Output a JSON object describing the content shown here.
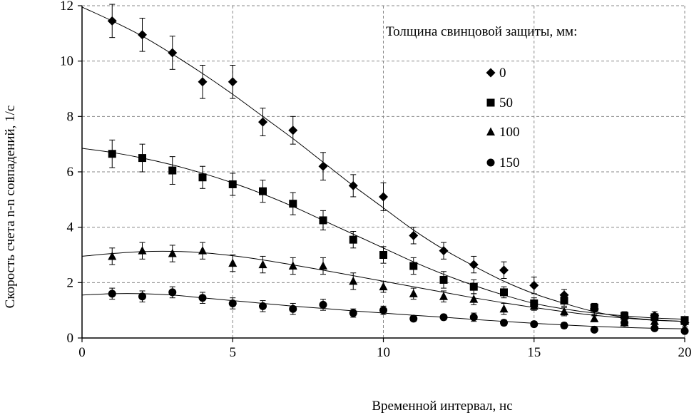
{
  "chart_data": {
    "type": "scatter",
    "xlabel": "Временной интервал, нс",
    "ylabel": "Скорость счета n-n совпадений, 1/с",
    "xlim": [
      0,
      20
    ],
    "ylim": [
      0,
      12
    ],
    "x_ticks": [
      "0",
      "5",
      "10",
      "15",
      "20"
    ],
    "y_ticks": [
      "0",
      "2",
      "4",
      "6",
      "8",
      "10",
      "12"
    ],
    "grid": "dashed",
    "legend_title": "Толщина свинцовой защиты, мм:",
    "legend_position": "top-right",
    "x": [
      1,
      2,
      3,
      4,
      5,
      6,
      7,
      8,
      9,
      10,
      11,
      12,
      13,
      14,
      15,
      16,
      17,
      18,
      19,
      20
    ],
    "series": [
      {
        "name": "0",
        "marker": "diamond",
        "values": [
          11.45,
          10.95,
          10.3,
          9.25,
          9.25,
          7.8,
          7.5,
          6.2,
          5.5,
          5.1,
          3.7,
          3.15,
          2.65,
          2.45,
          1.9,
          1.55,
          1.05,
          0.75,
          0.8,
          0.55
        ],
        "errors": [
          0.6,
          0.6,
          0.6,
          0.6,
          0.6,
          0.5,
          0.5,
          0.5,
          0.4,
          0.5,
          0.3,
          0.3,
          0.3,
          0.3,
          0.3,
          0.2,
          0.2,
          0.15,
          0.15,
          0.15
        ],
        "fit": [
          [
            0,
            11.95
          ],
          [
            1,
            11.45
          ],
          [
            2,
            10.9
          ],
          [
            3,
            10.25
          ],
          [
            4,
            9.55
          ],
          [
            5,
            8.8
          ],
          [
            6,
            8.0
          ],
          [
            7,
            7.2
          ],
          [
            8,
            6.35
          ],
          [
            9,
            5.5
          ],
          [
            10,
            4.7
          ],
          [
            11,
            3.9
          ],
          [
            12,
            3.2
          ],
          [
            13,
            2.6
          ],
          [
            14,
            2.05
          ],
          [
            15,
            1.6
          ],
          [
            16,
            1.25
          ],
          [
            17,
            0.95
          ],
          [
            18,
            0.75
          ],
          [
            19,
            0.65
          ],
          [
            20,
            0.6
          ]
        ]
      },
      {
        "name": "50",
        "marker": "square",
        "values": [
          6.65,
          6.5,
          6.05,
          5.8,
          5.55,
          5.3,
          4.85,
          4.25,
          3.55,
          3.0,
          2.6,
          2.1,
          1.85,
          1.65,
          1.25,
          1.35,
          1.1,
          0.8,
          0.75,
          0.65
        ],
        "errors": [
          0.5,
          0.5,
          0.5,
          0.4,
          0.4,
          0.4,
          0.4,
          0.35,
          0.3,
          0.3,
          0.3,
          0.3,
          0.25,
          0.2,
          0.2,
          0.2,
          0.15,
          0.15,
          0.1,
          0.1
        ],
        "fit": [
          [
            0,
            6.85
          ],
          [
            1,
            6.7
          ],
          [
            2,
            6.5
          ],
          [
            3,
            6.25
          ],
          [
            4,
            5.95
          ],
          [
            5,
            5.6
          ],
          [
            6,
            5.2
          ],
          [
            7,
            4.75
          ],
          [
            8,
            4.25
          ],
          [
            9,
            3.75
          ],
          [
            10,
            3.25
          ],
          [
            11,
            2.75
          ],
          [
            12,
            2.3
          ],
          [
            13,
            1.9
          ],
          [
            14,
            1.55
          ],
          [
            15,
            1.25
          ],
          [
            16,
            1.05
          ],
          [
            17,
            0.9
          ],
          [
            18,
            0.8
          ],
          [
            19,
            0.72
          ],
          [
            20,
            0.68
          ]
        ]
      },
      {
        "name": "100",
        "marker": "triangle",
        "values": [
          2.95,
          3.15,
          3.05,
          3.15,
          2.7,
          2.65,
          2.6,
          2.6,
          2.05,
          1.85,
          1.6,
          1.5,
          1.4,
          1.05,
          1.15,
          0.95,
          0.7,
          0.55,
          0.6,
          0.6
        ],
        "errors": [
          0.3,
          0.3,
          0.3,
          0.3,
          0.3,
          0.3,
          0.3,
          0.3,
          0.3,
          0.2,
          0.2,
          0.2,
          0.2,
          0.2,
          0.15,
          0.15,
          0.1,
          0.1,
          0.1,
          0.1
        ],
        "fit": [
          [
            0,
            2.95
          ],
          [
            1,
            3.05
          ],
          [
            2,
            3.12
          ],
          [
            3,
            3.13
          ],
          [
            4,
            3.08
          ],
          [
            5,
            2.97
          ],
          [
            6,
            2.82
          ],
          [
            7,
            2.64
          ],
          [
            8,
            2.45
          ],
          [
            9,
            2.25
          ],
          [
            10,
            2.05
          ],
          [
            11,
            1.85
          ],
          [
            12,
            1.65
          ],
          [
            13,
            1.45
          ],
          [
            14,
            1.27
          ],
          [
            15,
            1.1
          ],
          [
            16,
            0.95
          ],
          [
            17,
            0.82
          ],
          [
            18,
            0.72
          ],
          [
            19,
            0.64
          ],
          [
            20,
            0.6
          ]
        ]
      },
      {
        "name": "150",
        "marker": "circle",
        "values": [
          1.6,
          1.5,
          1.65,
          1.45,
          1.25,
          1.15,
          1.05,
          1.2,
          0.9,
          1.0,
          0.7,
          0.75,
          0.75,
          0.55,
          0.5,
          0.45,
          0.3,
          0.55,
          0.35,
          0.25
        ],
        "errors": [
          0.2,
          0.2,
          0.2,
          0.2,
          0.2,
          0.2,
          0.2,
          0.2,
          0.15,
          0.15,
          0.1,
          0.1,
          0.15,
          0.1,
          0.1,
          0.1,
          0.05,
          0.05,
          0.05,
          0.05
        ],
        "fit": [
          [
            0,
            1.55
          ],
          [
            1,
            1.6
          ],
          [
            2,
            1.6
          ],
          [
            3,
            1.55
          ],
          [
            4,
            1.45
          ],
          [
            5,
            1.35
          ],
          [
            6,
            1.25
          ],
          [
            7,
            1.15
          ],
          [
            8,
            1.07
          ],
          [
            9,
            0.98
          ],
          [
            10,
            0.9
          ],
          [
            11,
            0.82
          ],
          [
            12,
            0.75
          ],
          [
            13,
            0.67
          ],
          [
            14,
            0.6
          ],
          [
            15,
            0.53
          ],
          [
            16,
            0.47
          ],
          [
            17,
            0.42
          ],
          [
            18,
            0.38
          ],
          [
            19,
            0.35
          ],
          [
            20,
            0.33
          ]
        ]
      }
    ]
  }
}
